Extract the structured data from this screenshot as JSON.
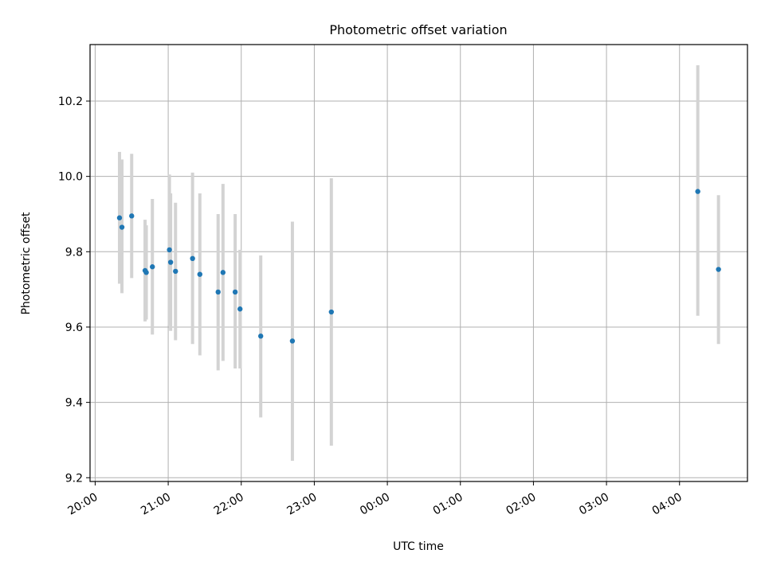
{
  "chart_data": {
    "type": "scatter",
    "title": "Photometric offset variation",
    "xlabel": "UTC time",
    "ylabel": "Photometric offset",
    "x_tick_labels": [
      "20:00",
      "21:00",
      "22:00",
      "23:00",
      "00:00",
      "01:00",
      "02:00",
      "03:00",
      "04:00"
    ],
    "x_tick_hours": [
      0,
      1,
      2,
      3,
      4,
      5,
      6,
      7,
      8
    ],
    "xlim_hours": [
      -0.07,
      8.93
    ],
    "y_ticks": [
      9.2,
      9.4,
      9.6,
      9.8,
      10.0,
      10.2
    ],
    "y_tick_labels": [
      "9.2",
      "9.4",
      "9.6",
      "9.8",
      "10.0",
      "10.2"
    ],
    "ylim": [
      9.19,
      10.35
    ],
    "grid": true,
    "marker_color": "#1f77b4",
    "errorbar_color": "#d3d3d3",
    "points": [
      {
        "time": "20:20",
        "y": 9.89,
        "err_low": 9.715,
        "err_high": 10.065
      },
      {
        "time": "20:22",
        "y": 9.865,
        "err_low": 9.69,
        "err_high": 10.045
      },
      {
        "time": "20:30",
        "y": 9.895,
        "err_low": 9.73,
        "err_high": 10.06
      },
      {
        "time": "20:41",
        "y": 9.75,
        "err_low": 9.615,
        "err_high": 9.885
      },
      {
        "time": "20:42",
        "y": 9.745,
        "err_low": 9.62,
        "err_high": 9.87
      },
      {
        "time": "20:47",
        "y": 9.76,
        "err_low": 9.58,
        "err_high": 9.94
      },
      {
        "time": "21:01",
        "y": 9.805,
        "err_low": 9.605,
        "err_high": 10.005
      },
      {
        "time": "21:02",
        "y": 9.772,
        "err_low": 9.59,
        "err_high": 9.955
      },
      {
        "time": "21:06",
        "y": 9.748,
        "err_low": 9.565,
        "err_high": 9.93
      },
      {
        "time": "21:20",
        "y": 9.782,
        "err_low": 9.555,
        "err_high": 10.01
      },
      {
        "time": "21:26",
        "y": 9.74,
        "err_low": 9.525,
        "err_high": 9.955
      },
      {
        "time": "21:41",
        "y": 9.693,
        "err_low": 9.485,
        "err_high": 9.9
      },
      {
        "time": "21:45",
        "y": 9.745,
        "err_low": 9.51,
        "err_high": 9.98
      },
      {
        "time": "21:55",
        "y": 9.693,
        "err_low": 9.49,
        "err_high": 9.9
      },
      {
        "time": "21:59",
        "y": 9.648,
        "err_low": 9.49,
        "err_high": 9.805
      },
      {
        "time": "22:16",
        "y": 9.576,
        "err_low": 9.36,
        "err_high": 9.79
      },
      {
        "time": "22:42",
        "y": 9.563,
        "err_low": 9.245,
        "err_high": 9.88
      },
      {
        "time": "23:14",
        "y": 9.64,
        "err_low": 9.285,
        "err_high": 9.995
      },
      {
        "time": "04:15",
        "y": 9.96,
        "err_low": 9.63,
        "err_high": 10.295
      },
      {
        "time": "04:32",
        "y": 9.753,
        "err_low": 9.555,
        "err_high": 9.95
      }
    ]
  }
}
